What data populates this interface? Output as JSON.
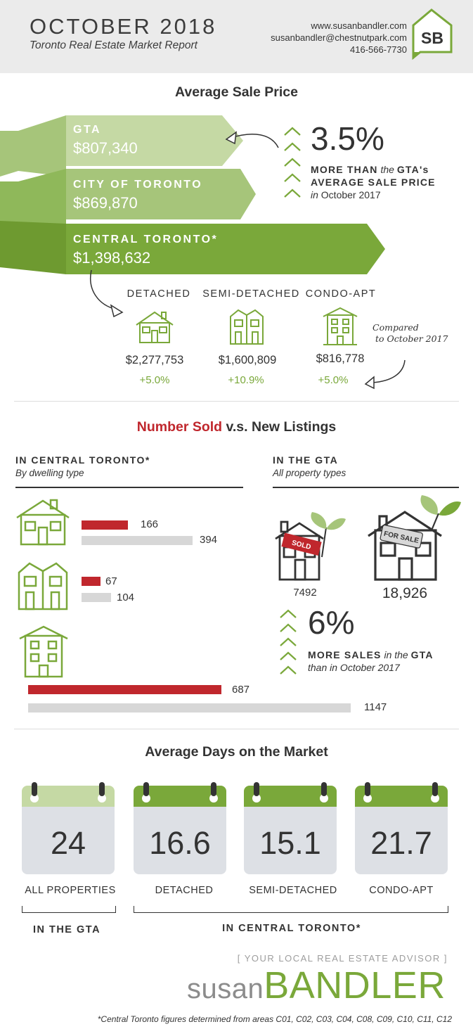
{
  "header": {
    "title": "OCTOBER 2018",
    "subtitle": "Toronto Real Estate Market Report",
    "website": "www.susanbandler.com",
    "email": "susanbandler@chestnutpark.com",
    "phone": "416-566-7730",
    "logo_text": "SB"
  },
  "avg_price": {
    "title": "Average Sale Price",
    "regions": [
      {
        "label": "GTA",
        "value": "$807,340"
      },
      {
        "label": "CITY OF TORONTO",
        "value": "$869,870"
      },
      {
        "label": "CENTRAL TORONTO*",
        "value": "$1,398,632"
      }
    ],
    "highlight": {
      "pct": "3.5%",
      "line1_bold": "MORE THAN",
      "line1_italic": "the",
      "line1_end": "GTA's",
      "line2": "AVERAGE SALE PRICE",
      "line3_italic": "in",
      "line3_end": "October 2017"
    },
    "dwellings": [
      {
        "label": "DETACHED",
        "price": "$2,277,753",
        "change": "+5.0%",
        "icon": "detached-house-icon"
      },
      {
        "label": "SEMI-DETACHED",
        "price": "$1,600,809",
        "change": "+10.9%",
        "icon": "semi-detached-house-icon"
      },
      {
        "label": "CONDO-APT",
        "price": "$816,778",
        "change": "+5.0%",
        "icon": "condo-building-icon"
      }
    ],
    "compare_note": {
      "line1": "Compared",
      "line2": "to October 2017"
    }
  },
  "sold_vs_listings": {
    "title_red": "Number Sold",
    "title_rest": " v.s. New Listings",
    "central": {
      "heading": "IN CENTRAL TORONTO*",
      "subheading": "By dwelling type",
      "rows": [
        {
          "type": "Detached",
          "sold": 166,
          "listings": 394,
          "sold_label": "166",
          "listings_label": "394"
        },
        {
          "type": "Semi-Detached",
          "sold": 67,
          "listings": 104,
          "sold_label": "67",
          "listings_label": "104"
        },
        {
          "type": "Condo-Apt",
          "sold": 687,
          "listings": 1147,
          "sold_label": "687",
          "listings_label": "1147"
        }
      ]
    },
    "gta": {
      "heading": "IN THE GTA",
      "subheading": "All property types",
      "sold_sign": "SOLD",
      "for_sale_sign": "FOR SALE",
      "sold": "7492",
      "listings": "18,926",
      "pct": "6%",
      "line1_bold": "MORE SALES",
      "line1_italic": "in the",
      "line1_end": "GTA",
      "line2": "than in October 2017"
    }
  },
  "days_on_market": {
    "title": "Average Days on the Market",
    "items": [
      {
        "value": "24",
        "label": "ALL PROPERTIES",
        "top_color": "#c5d9a4"
      },
      {
        "value": "16.6",
        "label": "DETACHED",
        "top_color": "#7aa83a"
      },
      {
        "value": "15.1",
        "label": "SEMI-DETACHED",
        "top_color": "#7aa83a"
      },
      {
        "value": "21.7",
        "label": "CONDO-APT",
        "top_color": "#7aa83a"
      }
    ],
    "group_gta": "IN THE GTA",
    "group_central": "IN CENTRAL TORONTO*"
  },
  "footer": {
    "tagline": "[ YOUR LOCAL REAL ESTATE ADVISOR ]",
    "brand_first": "susan",
    "brand_last": "BANDLER",
    "footnote": "*Central Toronto figures determined from areas C01, C02, C03, C04, C08, C09, C10, C11, C12"
  },
  "colors": {
    "green_light": "#c5d9a4",
    "green_mid": "#a6c57a",
    "green_dark": "#7aa83a",
    "red": "#c0272d",
    "grey_bar": "#d7d7d7"
  }
}
